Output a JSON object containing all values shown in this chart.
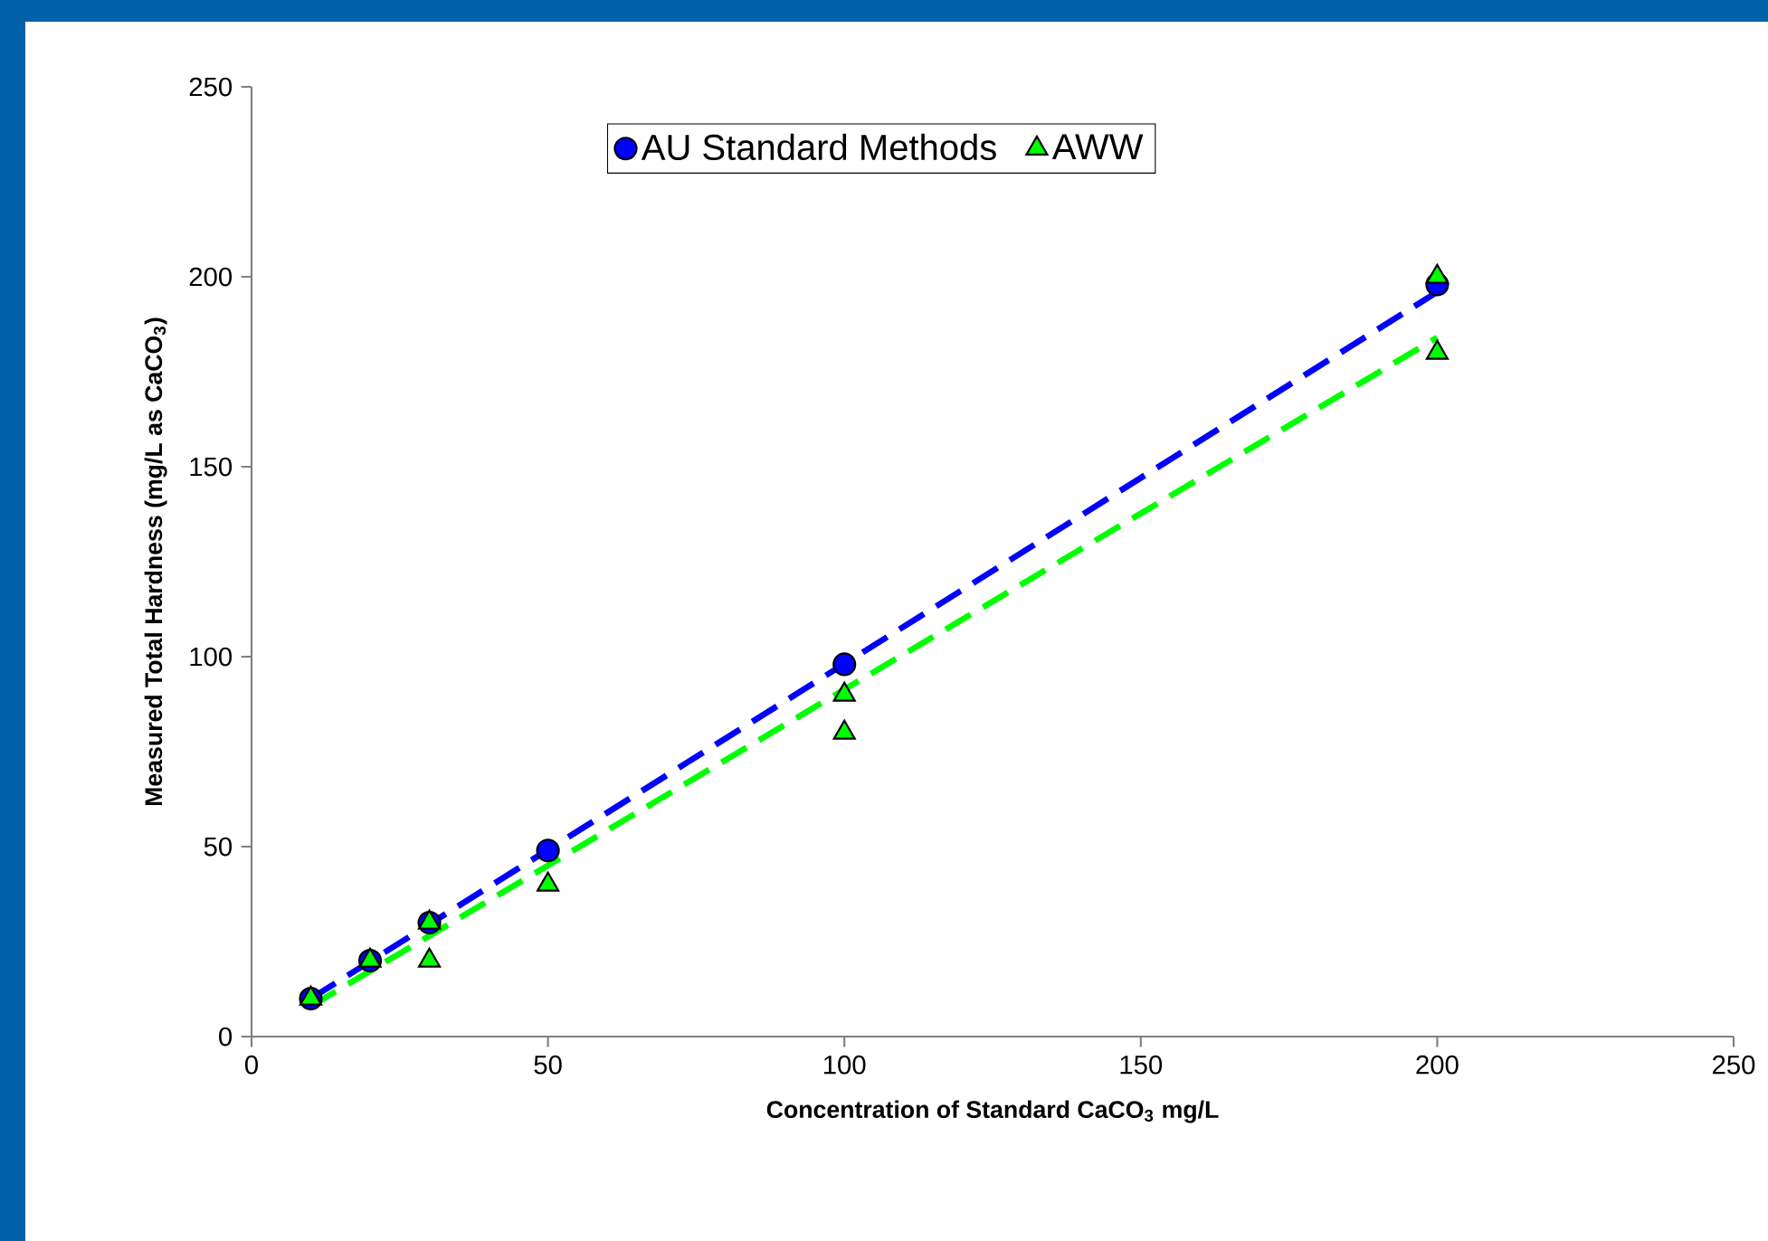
{
  "chart_data": {
    "type": "scatter",
    "xlabel": "Concentration of Standard CaCO$_{3}$ mg/L",
    "ylabel": "Measured Total Hardness (mg/L as CaCO$_{3}$)",
    "xlim": [
      0,
      250
    ],
    "ylim": [
      0,
      250
    ],
    "xticks": [
      0,
      50,
      100,
      150,
      200,
      250
    ],
    "yticks": [
      0,
      50,
      100,
      150,
      200,
      250
    ],
    "legend": "top",
    "series": [
      {
        "type": "line",
        "color": "#0000ff",
        "line_style": "dashed",
        "marker": "none",
        "x": [
          10,
          200
        ],
        "values": [
          10,
          196
        ]
      },
      {
        "type": "line",
        "color": "#00ff00",
        "line_style": "dashed",
        "marker": "none",
        "x": [
          10,
          200
        ],
        "values": [
          8,
          184
        ]
      },
      {
        "name": "AU Standard Methods",
        "color": "#0000ff",
        "marker": "circle",
        "x": [
          10,
          20,
          30,
          50,
          100,
          200
        ],
        "values": [
          10,
          20,
          30,
          49,
          98,
          198
        ]
      },
      {
        "name": "AWW",
        "color": "#00ff00",
        "marker": "triangle",
        "x": [
          10,
          20,
          30,
          30,
          50,
          100,
          100,
          200,
          200
        ],
        "values": [
          10,
          20,
          30,
          20,
          40,
          90,
          80,
          200,
          180
        ]
      }
    ]
  }
}
